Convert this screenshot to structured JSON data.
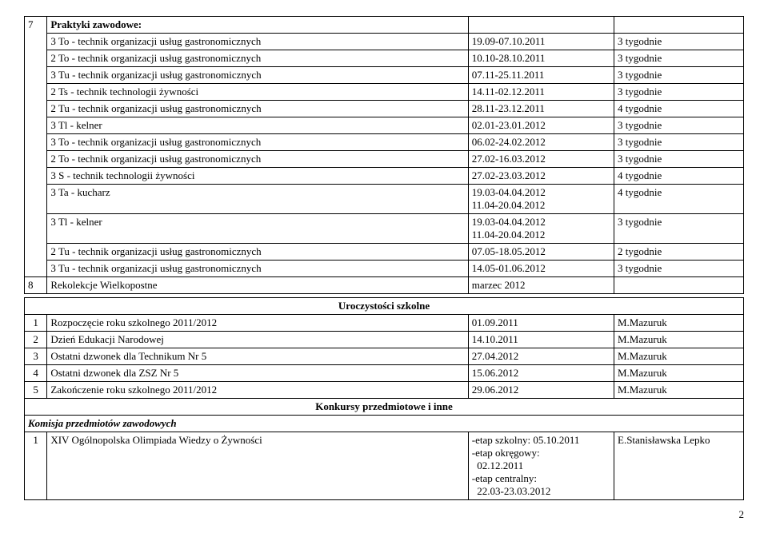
{
  "section7": {
    "num": "7",
    "title": "Praktyki zawodowe:",
    "rows": [
      {
        "name": "3 To - technik organizacji usług gastronomicznych",
        "date": "19.09-07.10.2011",
        "dur": "3 tygodnie"
      },
      {
        "name": "2 To - technik organizacji usług gastronomicznych",
        "date": "10.10-28.10.2011",
        "dur": "3 tygodnie"
      },
      {
        "name": "3 Tu - technik organizacji usług gastronomicznych",
        "date": "07.11-25.11.2011",
        "dur": "3 tygodnie"
      },
      {
        "name": "2 Ts - technik technologii żywności",
        "date": "14.11-02.12.2011",
        "dur": "3 tygodnie"
      },
      {
        "name": "2 Tu - technik organizacji usług gastronomicznych",
        "date": "28.11-23.12.2011",
        "dur": "4 tygodnie"
      },
      {
        "name": "3 Tl - kelner",
        "date": "02.01-23.01.2012",
        "dur": "3 tygodnie"
      },
      {
        "name": "3 To - technik organizacji usług gastronomicznych",
        "date": "06.02-24.02.2012",
        "dur": "3 tygodnie"
      },
      {
        "name": "2 To - technik organizacji usług gastronomicznych",
        "date": "27.02-16.03.2012",
        "dur": "3 tygodnie"
      },
      {
        "name": "3 S - technik technologii żywności",
        "date": "27.02-23.03.2012",
        "dur": "4 tygodnie"
      },
      {
        "name": "3 Ta - kucharz",
        "date": "19.03-04.04.2012\n11.04-20.04.2012",
        "dur": "4 tygodnie"
      },
      {
        "name": "3 Tl - kelner",
        "date": "19.03-04.04.2012\n11.04-20.04.2012",
        "dur": "3 tygodnie"
      },
      {
        "name": "2 Tu - technik organizacji usług gastronomicznych",
        "date": "07.05-18.05.2012",
        "dur": "2 tygodnie"
      },
      {
        "name": "3 Tu - technik organizacji usług gastronomicznych",
        "date": "14.05-01.06.2012",
        "dur": "3 tygodnie"
      }
    ]
  },
  "section8": {
    "num": "8",
    "name": "Rekolekcje Wielkopostne",
    "date": "marzec 2012"
  },
  "uroczystosci": {
    "header": "Uroczystości szkolne",
    "rows": [
      {
        "n": "1",
        "name": "Rozpoczęcie roku szkolnego 2011/2012",
        "date": "01.09.2011",
        "who": "M.Mazuruk"
      },
      {
        "n": "2",
        "name": "Dzień Edukacji Narodowej",
        "date": "14.10.2011",
        "who": "M.Mazuruk"
      },
      {
        "n": "3",
        "name": "Ostatni dzwonek dla Technikum Nr 5",
        "date": "27.04.2012",
        "who": "M.Mazuruk"
      },
      {
        "n": "4",
        "name": "Ostatni dzwonek dla ZSZ Nr 5",
        "date": "15.06.2012",
        "who": "M.Mazuruk"
      },
      {
        "n": "5",
        "name": "Zakończenie roku szkolnego 2011/2012",
        "date": "29.06.2012",
        "who": "M.Mazuruk"
      }
    ]
  },
  "konkursy": {
    "header": "Konkursy przedmiotowe i inne",
    "subheader": "Komisja przedmiotów zawodowych",
    "rows": [
      {
        "n": "1",
        "name": "XIV Ogólnopolska Olimpiada Wiedzy o Żywności",
        "date": "-etap szkolny: 05.10.2011\n-etap okręgowy:\n  02.12.2011\n-etap centralny:\n  22.03-23.03.2012",
        "who": "E.Stanisławska Lepko"
      }
    ]
  },
  "pageNum": "2"
}
